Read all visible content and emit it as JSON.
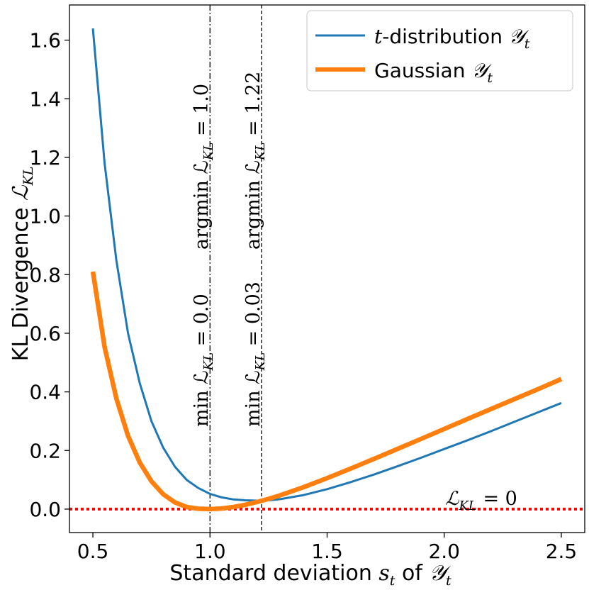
{
  "chart_data": {
    "type": "line",
    "xlabel": "Standard deviation s_t of Y_t",
    "ylabel": "KL Divergence L_KL",
    "xlim": [
      0.4,
      2.6
    ],
    "ylim": [
      -0.08,
      1.72
    ],
    "x_ticks": [
      0.5,
      1.0,
      1.5,
      2.0,
      2.5
    ],
    "x_tick_labels": [
      "0.5",
      "1.0",
      "1.5",
      "2.0",
      "2.5"
    ],
    "y_ticks": [
      0.0,
      0.2,
      0.4,
      0.6,
      0.8,
      1.0,
      1.2,
      1.4,
      1.6
    ],
    "y_tick_labels": [
      "0.0",
      "0.2",
      "0.4",
      "0.6",
      "0.8",
      "1.0",
      "1.2",
      "1.4",
      "1.6"
    ],
    "grid": false,
    "legend_position": "top-right",
    "series": [
      {
        "name": "t-distribution Y_t",
        "legend_math_prefix": "t",
        "legend_text": "-distribution ",
        "legend_math_suffix": "𝒴",
        "legend_subscript": "t",
        "color": "#1f77b4",
        "x": [
          0.5,
          0.55,
          0.6,
          0.65,
          0.7,
          0.75,
          0.8,
          0.85,
          0.9,
          0.95,
          1.0,
          1.05,
          1.1,
          1.15,
          1.2,
          1.25,
          1.3,
          1.4,
          1.5,
          1.6,
          1.7,
          1.8,
          1.9,
          2.0,
          2.1,
          2.2,
          2.3,
          2.4,
          2.5
        ],
        "values": [
          1.64,
          1.18,
          0.85,
          0.6,
          0.43,
          0.3,
          0.21,
          0.145,
          0.1,
          0.072,
          0.052,
          0.04,
          0.033,
          0.03,
          0.029,
          0.03,
          0.034,
          0.048,
          0.068,
          0.092,
          0.118,
          0.146,
          0.175,
          0.205,
          0.235,
          0.266,
          0.298,
          0.33,
          0.362
        ]
      },
      {
        "name": "Gaussian Y_t",
        "legend_text": "Gaussian ",
        "legend_math_suffix": "𝒴",
        "legend_subscript": "t",
        "color": "#ff7f0e",
        "x": [
          0.5,
          0.55,
          0.6,
          0.65,
          0.7,
          0.75,
          0.8,
          0.85,
          0.9,
          0.95,
          1.0,
          1.05,
          1.1,
          1.15,
          1.2,
          1.25,
          1.3,
          1.4,
          1.5,
          1.6,
          1.7,
          1.8,
          1.9,
          2.0,
          2.1,
          2.2,
          2.3,
          2.4,
          2.5
        ],
        "values": [
          0.81,
          0.553,
          0.378,
          0.25,
          0.159,
          0.095,
          0.051,
          0.023,
          0.0073,
          0.0013,
          0.0,
          0.0021,
          0.0072,
          0.0146,
          0.024,
          0.0349,
          0.0472,
          0.075,
          0.1057,
          0.138,
          0.1713,
          0.2051,
          0.2392,
          0.2734,
          0.3076,
          0.3416,
          0.3755,
          0.4091,
          0.4437
        ]
      }
    ],
    "vertical_lines": [
      {
        "x": 1.0,
        "style": "dashdot",
        "color": "#000000",
        "label_lower": "min ℒ",
        "label_lower_sub": "KL",
        "label_lower_val": " = 0.0",
        "label_upper": "argmin ℒ",
        "label_upper_sub": "KL",
        "label_upper_val": " = 1.0"
      },
      {
        "x": 1.22,
        "style": "dashed",
        "color": "#000000",
        "label_lower": "min ℒ",
        "label_lower_sub": "KL",
        "label_lower_val": " = 0.03",
        "label_upper": "argmin ℒ",
        "label_upper_sub": "KL",
        "label_upper_val": " = 1.22"
      }
    ],
    "horizontal_line": {
      "y": 0.0,
      "style": "dotted",
      "color": "#ff0000",
      "label": "ℒ",
      "label_sub": "KL",
      "label_val": " = 0"
    }
  }
}
